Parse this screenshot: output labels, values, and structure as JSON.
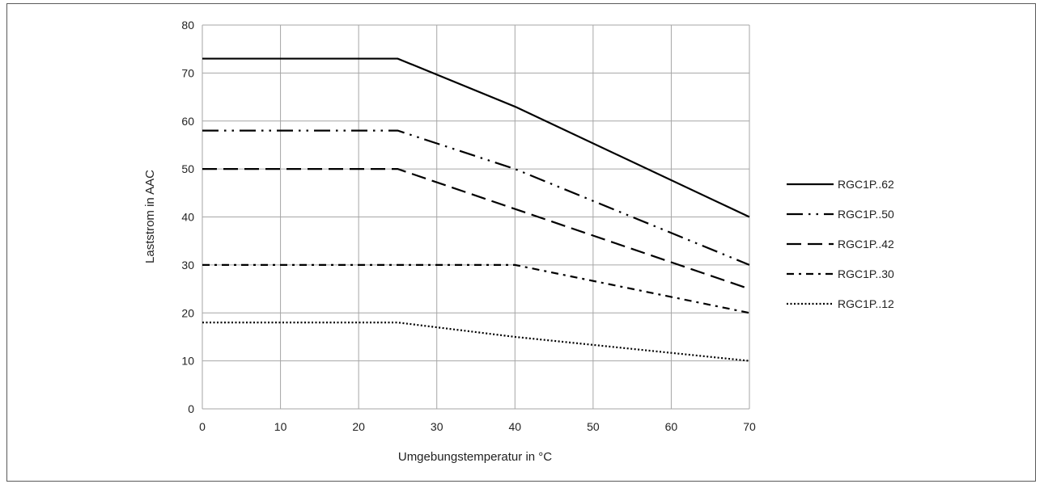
{
  "chart_data": {
    "type": "line",
    "title": "",
    "xlabel": "Umgebungstemperatur in °C",
    "ylabel": "Laststrom in AAC",
    "xlim": [
      0,
      70
    ],
    "ylim": [
      0,
      80
    ],
    "xticks": [
      0,
      10,
      20,
      30,
      40,
      50,
      60,
      70
    ],
    "yticks": [
      0,
      10,
      20,
      30,
      40,
      50,
      60,
      70,
      80
    ],
    "grid": true,
    "legend_position": "right",
    "line_color": "#000000",
    "grid_color": "#a6a6a6",
    "series": [
      {
        "name": "RGC1P..62",
        "dash": "solid",
        "x": [
          0,
          25,
          40,
          70
        ],
        "y": [
          73,
          73,
          63,
          40
        ]
      },
      {
        "name": "RGC1P..50",
        "dash": "dash-dot-dot",
        "x": [
          0,
          25,
          40,
          70
        ],
        "y": [
          58,
          58,
          50,
          30
        ]
      },
      {
        "name": "RGC1P..42",
        "dash": "long-dash",
        "x": [
          0,
          25,
          70
        ],
        "y": [
          50,
          50,
          25
        ]
      },
      {
        "name": "RGC1P..30",
        "dash": "dash-dot",
        "x": [
          0,
          40,
          70
        ],
        "y": [
          30,
          30,
          20
        ]
      },
      {
        "name": "RGC1P..12",
        "dash": "dotted",
        "x": [
          0,
          25,
          40,
          70
        ],
        "y": [
          18,
          18,
          15,
          10
        ]
      }
    ]
  }
}
